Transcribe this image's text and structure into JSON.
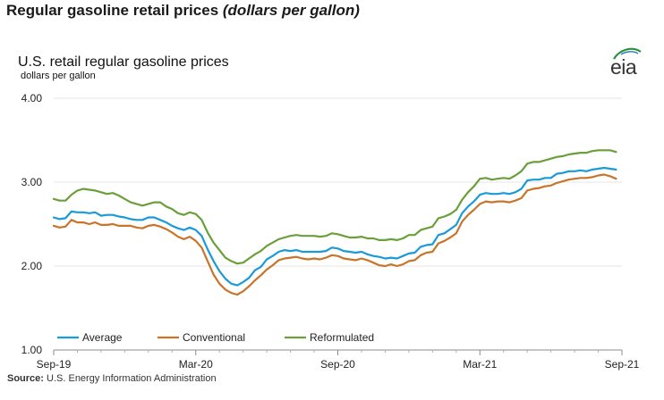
{
  "header": {
    "title": "Regular gasoline retail prices",
    "subtitle": "(dollars per gallon)"
  },
  "logo": {
    "text": "eia"
  },
  "source": {
    "label": "Source:",
    "text": "U.S. Energy Information Administration"
  },
  "chart_data": {
    "type": "line",
    "title": "U.S. retail regular gasoline prices",
    "ylabel": "dollars per gallon",
    "xlabel": "",
    "ylim": [
      1.0,
      4.0
    ],
    "yticks": [
      1.0,
      2.0,
      3.0,
      4.0
    ],
    "yticklabels": [
      "1.00",
      "2.00",
      "3.00",
      "4.00"
    ],
    "xticks": [
      0,
      6,
      12,
      18,
      24
    ],
    "xticklabels": [
      "Sep-19",
      "Mar-20",
      "Sep-20",
      "Mar-21",
      "Sep-21"
    ],
    "x_unit": "months since Sep-19",
    "legend_position": "bottom-left",
    "series": [
      {
        "name": "Average",
        "color": "#1a9ad6",
        "x": [
          0,
          0.25,
          0.5,
          0.75,
          1,
          1.25,
          1.5,
          1.75,
          2,
          2.25,
          2.5,
          2.75,
          3,
          3.25,
          3.5,
          3.75,
          4,
          4.25,
          4.5,
          4.75,
          5,
          5.25,
          5.5,
          5.75,
          6,
          6.25,
          6.5,
          6.75,
          7,
          7.25,
          7.5,
          7.75,
          8,
          8.25,
          8.5,
          8.75,
          9,
          9.25,
          9.5,
          9.75,
          10,
          10.25,
          10.5,
          10.75,
          11,
          11.25,
          11.5,
          11.75,
          12,
          12.25,
          12.5,
          12.75,
          13,
          13.25,
          13.5,
          13.75,
          14,
          14.25,
          14.5,
          14.75,
          15,
          15.25,
          15.5,
          15.75,
          16,
          16.25,
          16.5,
          16.75,
          17,
          17.25,
          17.5,
          17.75,
          18,
          18.25,
          18.5,
          18.75,
          19,
          19.25,
          19.5,
          19.75,
          20,
          20.25,
          20.5,
          20.75,
          21,
          21.25,
          21.5,
          21.75,
          22,
          22.25,
          22.5,
          22.75,
          23,
          23.25,
          23.5,
          23.75
        ],
        "values": [
          2.58,
          2.56,
          2.57,
          2.65,
          2.64,
          2.64,
          2.63,
          2.64,
          2.6,
          2.61,
          2.61,
          2.59,
          2.58,
          2.56,
          2.55,
          2.55,
          2.58,
          2.58,
          2.55,
          2.52,
          2.48,
          2.45,
          2.43,
          2.46,
          2.43,
          2.36,
          2.2,
          2.06,
          1.94,
          1.85,
          1.79,
          1.77,
          1.81,
          1.86,
          1.95,
          1.99,
          2.08,
          2.12,
          2.17,
          2.19,
          2.18,
          2.19,
          2.17,
          2.17,
          2.17,
          2.17,
          2.18,
          2.22,
          2.21,
          2.18,
          2.17,
          2.16,
          2.17,
          2.14,
          2.12,
          2.11,
          2.09,
          2.1,
          2.09,
          2.12,
          2.15,
          2.16,
          2.23,
          2.25,
          2.26,
          2.37,
          2.39,
          2.44,
          2.49,
          2.63,
          2.71,
          2.77,
          2.85,
          2.87,
          2.86,
          2.86,
          2.87,
          2.86,
          2.88,
          2.92,
          3.02,
          3.03,
          3.03,
          3.05,
          3.05,
          3.1,
          3.11,
          3.13,
          3.13,
          3.14,
          3.13,
          3.15,
          3.16,
          3.17,
          3.16,
          3.15
        ]
      },
      {
        "name": "Conventional",
        "color": "#c8742a",
        "x": [
          0,
          0.25,
          0.5,
          0.75,
          1,
          1.25,
          1.5,
          1.75,
          2,
          2.25,
          2.5,
          2.75,
          3,
          3.25,
          3.5,
          3.75,
          4,
          4.25,
          4.5,
          4.75,
          5,
          5.25,
          5.5,
          5.75,
          6,
          6.25,
          6.5,
          6.75,
          7,
          7.25,
          7.5,
          7.75,
          8,
          8.25,
          8.5,
          8.75,
          9,
          9.25,
          9.5,
          9.75,
          10,
          10.25,
          10.5,
          10.75,
          11,
          11.25,
          11.5,
          11.75,
          12,
          12.25,
          12.5,
          12.75,
          13,
          13.25,
          13.5,
          13.75,
          14,
          14.25,
          14.5,
          14.75,
          15,
          15.25,
          15.5,
          15.75,
          16,
          16.25,
          16.5,
          16.75,
          17,
          17.25,
          17.5,
          17.75,
          18,
          18.25,
          18.5,
          18.75,
          19,
          19.25,
          19.5,
          19.75,
          20,
          20.25,
          20.5,
          20.75,
          21,
          21.25,
          21.5,
          21.75,
          22,
          22.25,
          22.5,
          22.75,
          23,
          23.25,
          23.5,
          23.75
        ],
        "values": [
          2.48,
          2.46,
          2.47,
          2.55,
          2.52,
          2.52,
          2.5,
          2.52,
          2.49,
          2.49,
          2.5,
          2.48,
          2.48,
          2.48,
          2.46,
          2.45,
          2.48,
          2.49,
          2.47,
          2.44,
          2.4,
          2.35,
          2.32,
          2.35,
          2.3,
          2.22,
          2.06,
          1.9,
          1.79,
          1.72,
          1.68,
          1.66,
          1.7,
          1.76,
          1.83,
          1.89,
          1.96,
          2.01,
          2.07,
          2.09,
          2.1,
          2.11,
          2.09,
          2.08,
          2.09,
          2.08,
          2.1,
          2.13,
          2.12,
          2.09,
          2.08,
          2.07,
          2.09,
          2.07,
          2.04,
          2.01,
          2.0,
          2.02,
          2.0,
          2.02,
          2.06,
          2.07,
          2.13,
          2.16,
          2.17,
          2.27,
          2.3,
          2.34,
          2.39,
          2.53,
          2.61,
          2.67,
          2.74,
          2.77,
          2.76,
          2.77,
          2.77,
          2.76,
          2.78,
          2.81,
          2.9,
          2.92,
          2.93,
          2.95,
          2.96,
          2.99,
          3.01,
          3.03,
          3.04,
          3.05,
          3.05,
          3.06,
          3.08,
          3.09,
          3.07,
          3.04
        ]
      },
      {
        "name": "Reformulated",
        "color": "#6a9f3a",
        "x": [
          0,
          0.25,
          0.5,
          0.75,
          1,
          1.25,
          1.5,
          1.75,
          2,
          2.25,
          2.5,
          2.75,
          3,
          3.25,
          3.5,
          3.75,
          4,
          4.25,
          4.5,
          4.75,
          5,
          5.25,
          5.5,
          5.75,
          6,
          6.25,
          6.5,
          6.75,
          7,
          7.25,
          7.5,
          7.75,
          8,
          8.25,
          8.5,
          8.75,
          9,
          9.25,
          9.5,
          9.75,
          10,
          10.25,
          10.5,
          10.75,
          11,
          11.25,
          11.5,
          11.75,
          12,
          12.25,
          12.5,
          12.75,
          13,
          13.25,
          13.5,
          13.75,
          14,
          14.25,
          14.5,
          14.75,
          15,
          15.25,
          15.5,
          15.75,
          16,
          16.25,
          16.5,
          16.75,
          17,
          17.25,
          17.5,
          17.75,
          18,
          18.25,
          18.5,
          18.75,
          19,
          19.25,
          19.5,
          19.75,
          20,
          20.25,
          20.5,
          20.75,
          21,
          21.25,
          21.5,
          21.75,
          22,
          22.25,
          22.5,
          22.75,
          23,
          23.25,
          23.5,
          23.75
        ],
        "values": [
          2.8,
          2.78,
          2.78,
          2.85,
          2.9,
          2.92,
          2.91,
          2.9,
          2.88,
          2.86,
          2.87,
          2.84,
          2.8,
          2.76,
          2.74,
          2.72,
          2.74,
          2.76,
          2.76,
          2.71,
          2.68,
          2.63,
          2.61,
          2.64,
          2.62,
          2.55,
          2.4,
          2.28,
          2.19,
          2.1,
          2.06,
          2.03,
          2.04,
          2.09,
          2.14,
          2.18,
          2.24,
          2.28,
          2.32,
          2.34,
          2.36,
          2.37,
          2.36,
          2.36,
          2.36,
          2.35,
          2.36,
          2.39,
          2.38,
          2.36,
          2.34,
          2.34,
          2.35,
          2.33,
          2.33,
          2.31,
          2.31,
          2.32,
          2.31,
          2.33,
          2.37,
          2.37,
          2.43,
          2.45,
          2.47,
          2.57,
          2.59,
          2.62,
          2.67,
          2.79,
          2.88,
          2.95,
          3.04,
          3.05,
          3.03,
          3.04,
          3.05,
          3.04,
          3.08,
          3.13,
          3.22,
          3.24,
          3.24,
          3.26,
          3.28,
          3.3,
          3.31,
          3.33,
          3.34,
          3.35,
          3.35,
          3.37,
          3.38,
          3.38,
          3.38,
          3.36
        ]
      }
    ]
  }
}
